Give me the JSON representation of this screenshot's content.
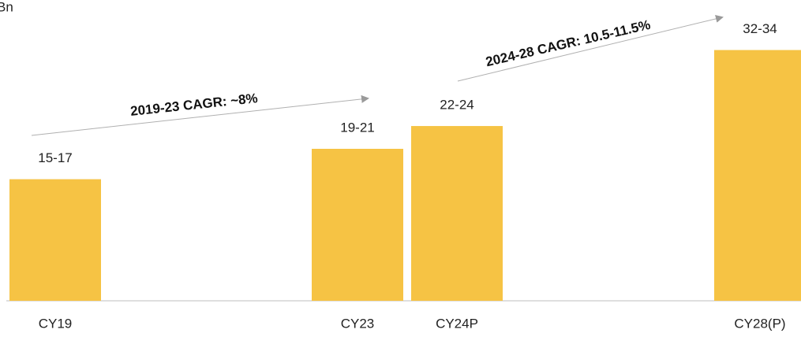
{
  "chart_data": {
    "type": "bar",
    "unit": "Bn",
    "categories": [
      "CY19",
      "CY23",
      "CY24P",
      "CY28(P)"
    ],
    "values": [
      16,
      20,
      23,
      33
    ],
    "value_labels": [
      "15-17",
      "19-21",
      "22-24",
      "32-34"
    ],
    "color": "#f6c344",
    "annotations": [
      "2019-23 CAGR: ~8%",
      "2024-28 CAGR: 10.5-11.5%"
    ]
  }
}
